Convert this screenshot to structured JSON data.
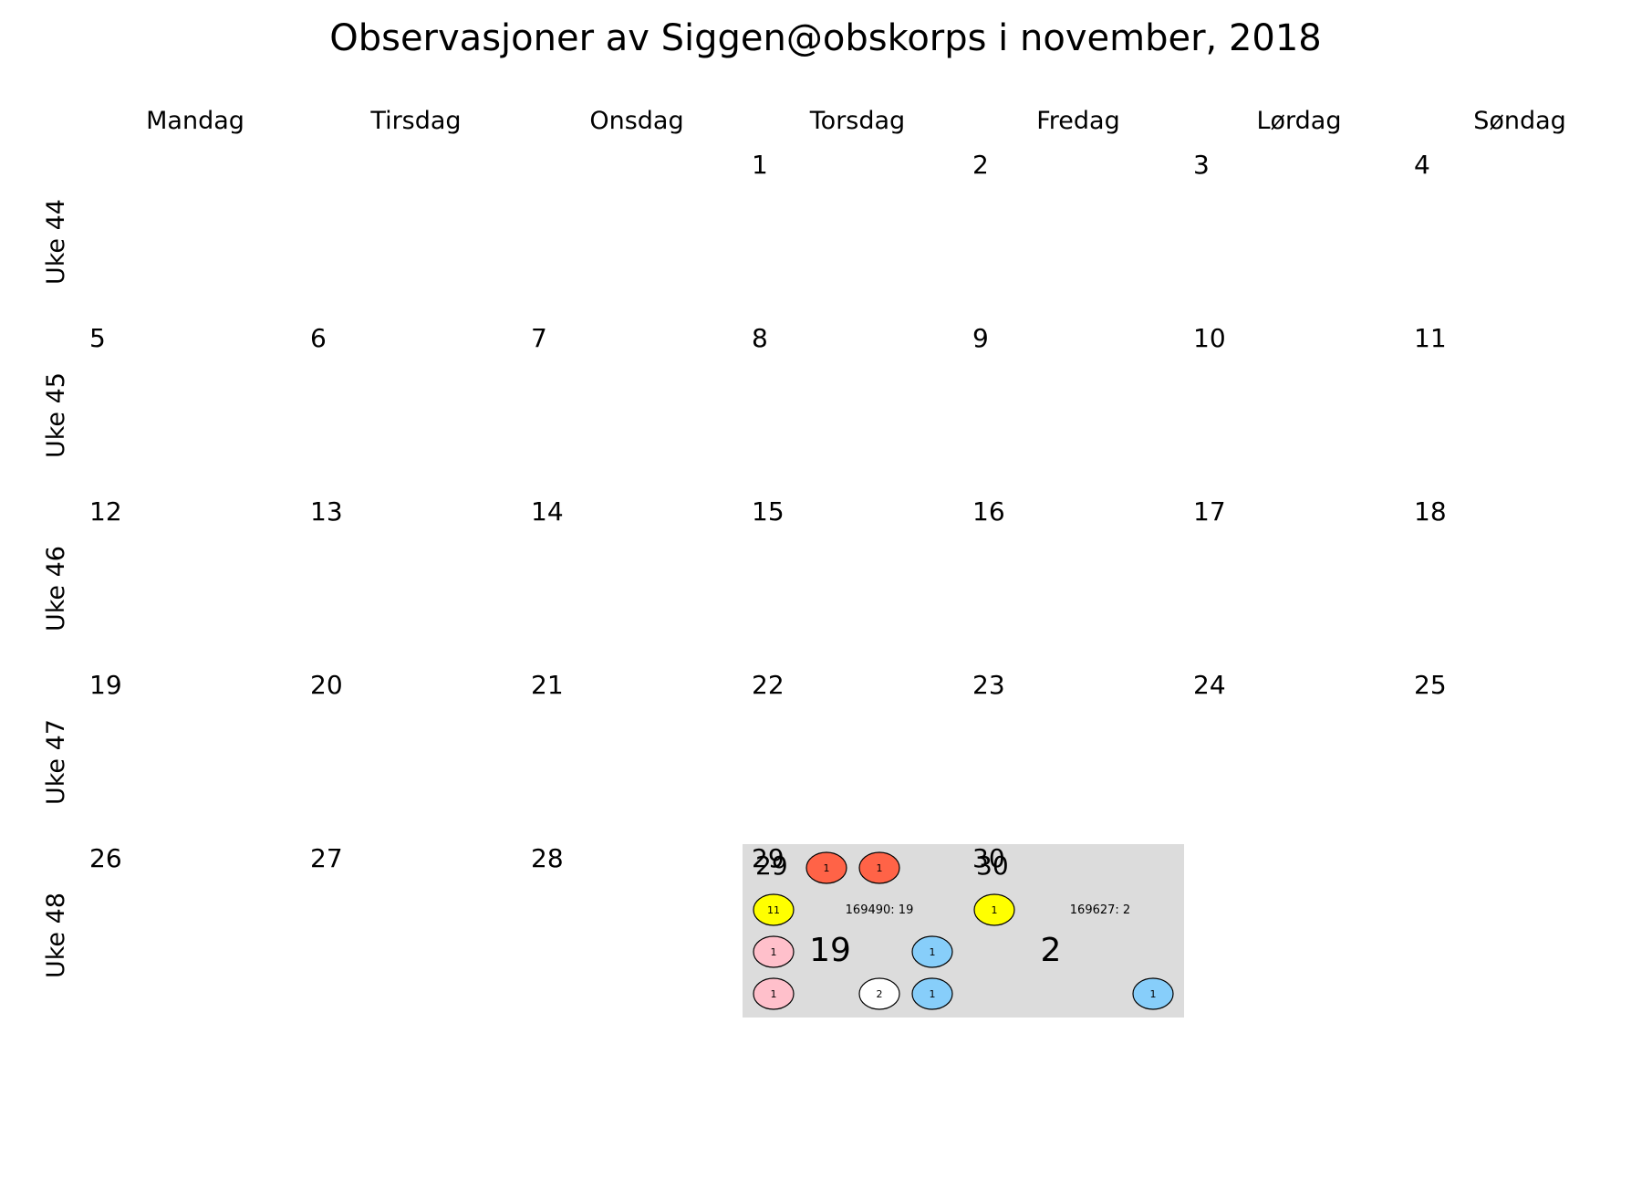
{
  "chart_data": {
    "type": "calendar",
    "title": "Observasjoner av Siggen@obskorps i november, 2018",
    "weekdays": [
      "Mandag",
      "Tirsdag",
      "Onsdag",
      "Torsdag",
      "Fredag",
      "Lørdag",
      "Søndag"
    ],
    "weeks": [
      {
        "label": "Uke 44",
        "days": [
          "",
          "",
          "",
          "1",
          "2",
          "3",
          "4"
        ]
      },
      {
        "label": "Uke 45",
        "days": [
          "5",
          "6",
          "7",
          "8",
          "9",
          "10",
          "11"
        ]
      },
      {
        "label": "Uke 46",
        "days": [
          "12",
          "13",
          "14",
          "15",
          "16",
          "17",
          "18"
        ]
      },
      {
        "label": "Uke 47",
        "days": [
          "19",
          "20",
          "21",
          "22",
          "23",
          "24",
          "25"
        ]
      },
      {
        "label": "Uke 48",
        "days": [
          "26",
          "27",
          "28",
          "29",
          "30",
          "",
          ""
        ]
      }
    ],
    "highlight_color": "#dcdcdc",
    "observation_days": [
      {
        "day": "29",
        "week": 4,
        "weekday": 3,
        "total": "19",
        "id_label": "169490: 19",
        "markers": [
          {
            "row": 0,
            "col": 1,
            "count": "1",
            "color": "#ff6347"
          },
          {
            "row": 0,
            "col": 2,
            "count": "1",
            "color": "#ff6347"
          },
          {
            "row": 1,
            "col": 0,
            "count": "11",
            "color": "#ffff00"
          },
          {
            "row": 2,
            "col": 0,
            "count": "1",
            "color": "#ffc0cb"
          },
          {
            "row": 2,
            "col": 3,
            "count": "1",
            "color": "#87cefa"
          },
          {
            "row": 3,
            "col": 0,
            "count": "1",
            "color": "#ffc0cb"
          },
          {
            "row": 3,
            "col": 2,
            "count": "2",
            "color": "#ffffff"
          },
          {
            "row": 3,
            "col": 3,
            "count": "1",
            "color": "#87cefa"
          }
        ]
      },
      {
        "day": "30",
        "week": 4,
        "weekday": 4,
        "total": "2",
        "id_label": "169627: 2",
        "markers": [
          {
            "row": 1,
            "col": 0,
            "count": "1",
            "color": "#ffff00"
          },
          {
            "row": 3,
            "col": 3,
            "count": "1",
            "color": "#87cefa"
          }
        ]
      }
    ]
  }
}
